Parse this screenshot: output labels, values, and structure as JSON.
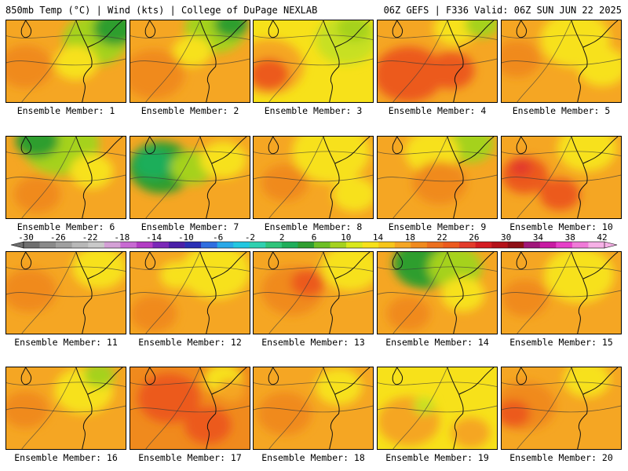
{
  "header": {
    "left": "850mb Temp (°C) | Wind (kts) | College of DuPage NEXLAB",
    "right": "06Z GEFS | F336 Valid: 06Z SUN JUN 22 2025"
  },
  "panels": [
    {
      "label": "Ensemble Member: 1",
      "base": "#f5a623",
      "blobs": [
        {
          "c": "#a5d21e",
          "x": 115,
          "y": 25,
          "r": 42
        },
        {
          "c": "#2f9e2f",
          "x": 140,
          "y": 10,
          "r": 28
        },
        {
          "c": "#f7e11a",
          "x": 90,
          "y": 55,
          "r": 28
        },
        {
          "c": "#f08a1d",
          "x": 25,
          "y": 60,
          "r": 35
        }
      ]
    },
    {
      "label": "Ensemble Member: 2",
      "base": "#f5a623",
      "blobs": [
        {
          "c": "#a5d21e",
          "x": 110,
          "y": 10,
          "r": 40
        },
        {
          "c": "#2f9e2f",
          "x": 130,
          "y": 5,
          "r": 22
        },
        {
          "c": "#f7e11a",
          "x": 80,
          "y": 40,
          "r": 25
        },
        {
          "c": "#f08a1d",
          "x": 30,
          "y": 70,
          "r": 40
        }
      ]
    },
    {
      "label": "Ensemble Member: 3",
      "base": "#f7e11a",
      "blobs": [
        {
          "c": "#f5a623",
          "x": 20,
          "y": 60,
          "r": 45
        },
        {
          "c": "#ec5a1e",
          "x": 20,
          "y": 70,
          "r": 26
        },
        {
          "c": "#c8e020",
          "x": 120,
          "y": 25,
          "r": 40
        },
        {
          "c": "#a5d21e",
          "x": 130,
          "y": 10,
          "r": 22
        }
      ]
    },
    {
      "label": "Ensemble Member: 4",
      "base": "#f5a623",
      "blobs": [
        {
          "c": "#ec5a1e",
          "x": 40,
          "y": 70,
          "r": 45
        },
        {
          "c": "#ec5a1e",
          "x": 95,
          "y": 65,
          "r": 30
        },
        {
          "c": "#f7e11a",
          "x": 100,
          "y": 10,
          "r": 28
        },
        {
          "c": "#a5d21e",
          "x": 135,
          "y": 5,
          "r": 22
        }
      ]
    },
    {
      "label": "Ensemble Member: 5",
      "base": "#f5a623",
      "blobs": [
        {
          "c": "#f7e11a",
          "x": 95,
          "y": 25,
          "r": 45
        },
        {
          "c": "#f7e11a",
          "x": 130,
          "y": 60,
          "r": 32
        },
        {
          "c": "#f08a1d",
          "x": 20,
          "y": 50,
          "r": 30
        }
      ]
    },
    {
      "label": "Ensemble Member: 6",
      "base": "#f5a623",
      "blobs": [
        {
          "c": "#a5d21e",
          "x": 70,
          "y": 10,
          "r": 50
        },
        {
          "c": "#2f9e2f",
          "x": 40,
          "y": 5,
          "r": 28
        },
        {
          "c": "#f7e11a",
          "x": 110,
          "y": 45,
          "r": 28
        },
        {
          "c": "#f08a1d",
          "x": 40,
          "y": 75,
          "r": 30
        }
      ]
    },
    {
      "label": "Ensemble Member: 7",
      "base": "#f5a623",
      "blobs": [
        {
          "c": "#2f9e2f",
          "x": 40,
          "y": 40,
          "r": 42
        },
        {
          "c": "#1fae5a",
          "x": 30,
          "y": 35,
          "r": 25
        },
        {
          "c": "#a5d21e",
          "x": 80,
          "y": 40,
          "r": 28
        },
        {
          "c": "#f7e11a",
          "x": 120,
          "y": 30,
          "r": 30
        }
      ]
    },
    {
      "label": "Ensemble Member: 8",
      "base": "#f5a623",
      "blobs": [
        {
          "c": "#f7e11a",
          "x": 100,
          "y": 20,
          "r": 50
        },
        {
          "c": "#f7e11a",
          "x": 130,
          "y": 75,
          "r": 28
        },
        {
          "c": "#f08a1d",
          "x": 40,
          "y": 60,
          "r": 30
        }
      ]
    },
    {
      "label": "Ensemble Member: 9",
      "base": "#f5a623",
      "blobs": [
        {
          "c": "#a5d21e",
          "x": 120,
          "y": 10,
          "r": 30
        },
        {
          "c": "#f7e11a",
          "x": 70,
          "y": 20,
          "r": 35
        },
        {
          "c": "#f08a1d",
          "x": 80,
          "y": 60,
          "r": 35
        }
      ]
    },
    {
      "label": "Ensemble Member: 10",
      "base": "#f5a623",
      "blobs": [
        {
          "c": "#ec5a1e",
          "x": 30,
          "y": 50,
          "r": 30
        },
        {
          "c": "#ec5a1e",
          "x": 75,
          "y": 75,
          "r": 26
        },
        {
          "c": "#f7e11a",
          "x": 110,
          "y": 15,
          "r": 38
        },
        {
          "c": "#e33b2a",
          "x": 25,
          "y": 40,
          "r": 14
        }
      ]
    },
    {
      "label": "Ensemble Member: 11",
      "base": "#f5a623",
      "blobs": [
        {
          "c": "#f7e11a",
          "x": 120,
          "y": 20,
          "r": 35
        },
        {
          "c": "#f08a1d",
          "x": 30,
          "y": 50,
          "r": 35
        }
      ]
    },
    {
      "label": "Ensemble Member: 12",
      "base": "#f5a623",
      "blobs": [
        {
          "c": "#f7e11a",
          "x": 110,
          "y": 25,
          "r": 45
        },
        {
          "c": "#f7e11a",
          "x": 60,
          "y": 30,
          "r": 22
        },
        {
          "c": "#f08a1d",
          "x": 30,
          "y": 80,
          "r": 30
        }
      ]
    },
    {
      "label": "Ensemble Member: 13",
      "base": "#f5a623",
      "blobs": [
        {
          "c": "#f08a1d",
          "x": 50,
          "y": 50,
          "r": 40
        },
        {
          "c": "#ec5a1e",
          "x": 70,
          "y": 40,
          "r": 22
        },
        {
          "c": "#f7e11a",
          "x": 125,
          "y": 20,
          "r": 38
        }
      ]
    },
    {
      "label": "Ensemble Member: 14",
      "base": "#f5a623",
      "blobs": [
        {
          "c": "#2f9e2f",
          "x": 60,
          "y": 15,
          "r": 40
        },
        {
          "c": "#a5d21e",
          "x": 100,
          "y": 20,
          "r": 35
        },
        {
          "c": "#f7e11a",
          "x": 110,
          "y": 55,
          "r": 28
        },
        {
          "c": "#f08a1d",
          "x": 40,
          "y": 80,
          "r": 28
        }
      ]
    },
    {
      "label": "Ensemble Member: 15",
      "base": "#f5a623",
      "blobs": [
        {
          "c": "#f7e11a",
          "x": 100,
          "y": 30,
          "r": 45
        },
        {
          "c": "#f08a1d",
          "x": 30,
          "y": 60,
          "r": 30
        }
      ]
    },
    {
      "label": "Ensemble Member: 16",
      "base": "#f5a623",
      "blobs": [
        {
          "c": "#f7e11a",
          "x": 100,
          "y": 30,
          "r": 38
        },
        {
          "c": "#a5d21e",
          "x": 120,
          "y": 10,
          "r": 20
        },
        {
          "c": "#f08a1d",
          "x": 25,
          "y": 55,
          "r": 30
        }
      ]
    },
    {
      "label": "Ensemble Member: 17",
      "base": "#f08a1d",
      "blobs": [
        {
          "c": "#ec5a1e",
          "x": 50,
          "y": 40,
          "r": 40
        },
        {
          "c": "#ec5a1e",
          "x": 100,
          "y": 75,
          "r": 30
        },
        {
          "c": "#f7e11a",
          "x": 120,
          "y": 15,
          "r": 25
        },
        {
          "c": "#f5a623",
          "x": 130,
          "y": 30,
          "r": 18
        }
      ]
    },
    {
      "label": "Ensemble Member: 18",
      "base": "#f5a623",
      "blobs": [
        {
          "c": "#f7e11a",
          "x": 110,
          "y": 25,
          "r": 30
        },
        {
          "c": "#f08a1d",
          "x": 40,
          "y": 60,
          "r": 35
        }
      ]
    },
    {
      "label": "Ensemble Member: 19",
      "base": "#f7e11a",
      "blobs": [
        {
          "c": "#f5a623",
          "x": 40,
          "y": 70,
          "r": 40
        },
        {
          "c": "#f5a623",
          "x": 120,
          "y": 85,
          "r": 25
        },
        {
          "c": "#c8e020",
          "x": 60,
          "y": 50,
          "r": 14
        }
      ]
    },
    {
      "label": "Ensemble Member: 20",
      "base": "#f5a623",
      "blobs": [
        {
          "c": "#f08a1d",
          "x": 30,
          "y": 50,
          "r": 40
        },
        {
          "c": "#ec5a1e",
          "x": 15,
          "y": 60,
          "r": 22
        },
        {
          "c": "#f7e11a",
          "x": 110,
          "y": 15,
          "r": 30
        }
      ]
    }
  ],
  "colorbar": {
    "labels": [
      "-30",
      "-26",
      "-22",
      "-18",
      "-14",
      "-10",
      "-6",
      "-2",
      "2",
      "6",
      "10",
      "14",
      "18",
      "22",
      "26",
      "30",
      "34",
      "38",
      "42"
    ],
    "colors": [
      "#6f6f6f",
      "#8a8a8a",
      "#a0a0a0",
      "#b8b8b8",
      "#c9c9c9",
      "#d4a0d6",
      "#c86ad2",
      "#b33cc4",
      "#7b28b8",
      "#4b1fa8",
      "#2a2fb5",
      "#2f6ee0",
      "#28a8e8",
      "#22c7e0",
      "#2fd0b0",
      "#2fc47a",
      "#1fae5a",
      "#2f9e2f",
      "#6dbf25",
      "#a5d21e",
      "#d9e81c",
      "#f7e11a",
      "#f7c61a",
      "#f5a623",
      "#f08a1d",
      "#ec6f1e",
      "#ec5a1e",
      "#e33b2a",
      "#d41c22",
      "#b5121a",
      "#8e0f17",
      "#a0167a",
      "#c81ba3",
      "#e63fc8",
      "#f07ad8",
      "#f6b0e6"
    ]
  }
}
